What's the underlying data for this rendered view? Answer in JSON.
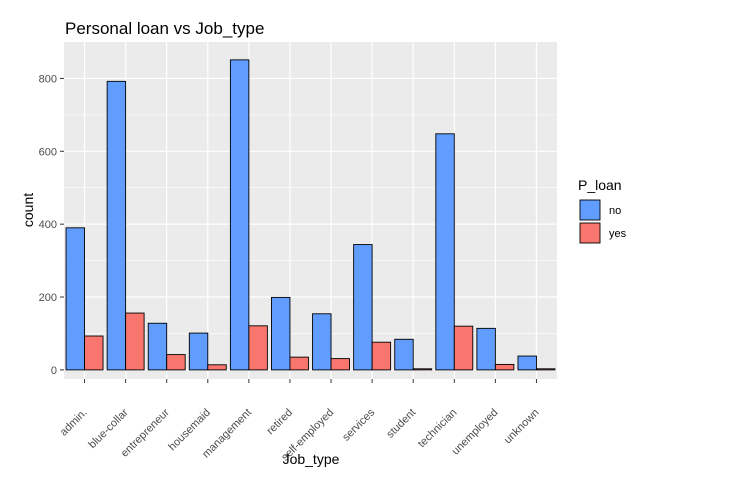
{
  "chart_data": {
    "type": "bar",
    "title": "Personal loan vs Job_type",
    "xlabel": "Job_type",
    "ylabel": "count",
    "ylim": [
      -25,
      900
    ],
    "yticks": [
      0,
      200,
      400,
      600,
      800
    ],
    "grid": true,
    "legend_position": "right",
    "legend_title": "P_loan",
    "categories": [
      "admin.",
      "blue-collar",
      "entrepreneur",
      "housemaid",
      "management",
      "retired",
      "self-employed",
      "services",
      "student",
      "technician",
      "unemployed",
      "unknown"
    ],
    "series": [
      {
        "name": "no",
        "color": "#619CFF",
        "values": [
          390,
          792,
          128,
          101,
          851,
          199,
          154,
          344,
          84,
          648,
          114,
          38
        ]
      },
      {
        "name": "yes",
        "color": "#F8766D",
        "values": [
          93,
          156,
          42,
          14,
          121,
          35,
          31,
          76,
          3,
          120,
          15,
          3
        ]
      }
    ]
  }
}
